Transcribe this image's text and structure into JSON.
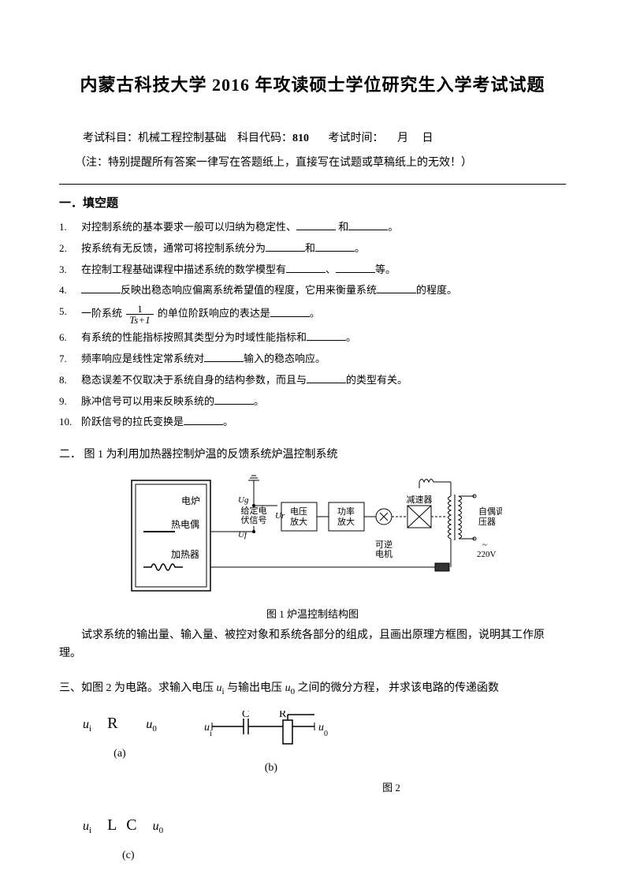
{
  "title": "内蒙古科技大学 2016 年攻读硕士学位研究生入学考试试题",
  "exam_info": {
    "subject_label": "考试科目：",
    "subject": "机械工程控制基础",
    "code_label": "科目代码：",
    "code": "810",
    "time_label": "考试时间：",
    "month": "月",
    "day": "日"
  },
  "note": "（注：特别提醒所有答案一律写在答题纸上，直接写在试题或草稿纸上的无效！）",
  "section1": {
    "title": "一．填空题",
    "questions": [
      {
        "num": "1.",
        "parts": [
          "对控制系统的基本要求一般可以归纳为稳定性、",
          "BLANK",
          " 和",
          "BLANK",
          "。"
        ]
      },
      {
        "num": "2.",
        "parts": [
          "按系统有无反馈，通常可将控制系统分为",
          "BLANK",
          "和",
          "BLANK",
          "。"
        ]
      },
      {
        "num": "3.",
        "parts": [
          "在控制工程基础课程中描述系统的数学模型有",
          "BLANK",
          "、",
          "BLANK",
          "等。"
        ]
      },
      {
        "num": "4.",
        "parts": [
          "BLANK",
          "反映出稳态响应偏离系统希望值的程度，它用来衡量系统",
          "BLANK",
          "的程度。"
        ]
      },
      {
        "num": "5.",
        "parts": [
          "一阶系统 ",
          "FRAC",
          " 的单位阶跃响应的表达是",
          "BLANK",
          "。"
        ],
        "frac_num": "1",
        "frac_den": "Ts+1"
      },
      {
        "num": "6.",
        "parts": [
          "有系统的性能指标按照其类型分为时域性能指标和",
          "BLANK",
          "。"
        ]
      },
      {
        "num": "7.",
        "parts": [
          "频率响应是线性定常系统对",
          "BLANK",
          "输入的稳态响应。"
        ]
      },
      {
        "num": "8.",
        "parts": [
          "稳态误差不仅取决于系统自身的结构参数，而且与",
          "BLANK",
          "的类型有关。"
        ]
      },
      {
        "num": "9.",
        "parts": [
          "脉冲信号可以用来反映系统的",
          "BLANK",
          "。"
        ]
      },
      {
        "num": "10.",
        "parts": [
          "阶跃信号的拉氏变换是",
          "BLANK",
          "。"
        ]
      }
    ]
  },
  "section2": {
    "title_prefix": "二．",
    "title": "图 1 为利用加热器控制炉温的反馈系统炉温控制系统",
    "diagram": {
      "furnace": "电炉",
      "thermocouple": "热电偶",
      "heater": "加热器",
      "ug": "Ug",
      "given": "给定电",
      "given2": "伏信号",
      "ur": "Ur",
      "uf": "Uf",
      "vamp": "电压\n放大",
      "pamp": "功率\n放大",
      "reducer": "减速器",
      "motor": "可逆\n电机",
      "regulator": "自偶调\n压器",
      "voltage": "~\n220V"
    },
    "fig_caption": "图 1  炉温控制结构图",
    "question": "试求系统的输出量、输入量、被控对象和系统各部分的组成，且画出原理方框图，说明其工作原理。"
  },
  "section3": {
    "title_prefix": "三、",
    "title_parts": [
      "如图 2 为电路。求输入电压 ",
      "u_i",
      " 与输出电压 ",
      "u_0",
      " 之间的微分方程，  并求该电路的传递函数"
    ],
    "circuit_a": {
      "ui": "u",
      "ui_sub": "i",
      "R": "R",
      "u0": "u",
      "u0_sub": "0",
      "label": "(a)"
    },
    "circuit_b": {
      "ui": "u",
      "ui_sub": "i",
      "C": "C",
      "R": "R",
      "u0": "u",
      "u0_sub": "0",
      "label": "(b)"
    },
    "circuit_c": {
      "ui": "u",
      "ui_sub": "i",
      "L": "L",
      "C": "C",
      "u0": "u",
      "u0_sub": "0",
      "label": "(c)"
    },
    "fig_caption": "图 2"
  },
  "colors": {
    "text": "#000000",
    "bg": "#ffffff",
    "line": "#000000"
  }
}
